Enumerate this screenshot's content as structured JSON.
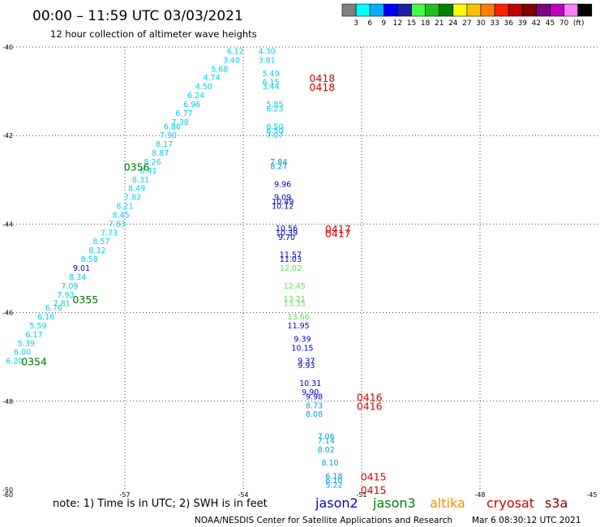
{
  "header": {
    "title": "00:00 – 11:59 UTC 03/03/2021",
    "subtitle": "12 hour collection of altimeter wave heights"
  },
  "scale": {
    "colors": [
      "#808080",
      "#00ffff",
      "#00b0ff",
      "#0000ff",
      "#2020a0",
      "#40ff40",
      "#20c020",
      "#008000",
      "#ffff00",
      "#ffc000",
      "#ff8000",
      "#ff2000",
      "#c00000",
      "#800000",
      "#800080",
      "#c000c0",
      "#ff80ff",
      "#000000"
    ],
    "labels": [
      "3",
      "6",
      "9",
      "12",
      "15",
      "18",
      "21",
      "24",
      "27",
      "30",
      "33",
      "36",
      "39",
      "42",
      "45",
      "70"
    ],
    "unit": "(ft)"
  },
  "footer": {
    "note": "note:  1) Time is in UTC; 2) SWH is in feet",
    "satellites": [
      {
        "name": "jason2",
        "color": "#0000cc"
      },
      {
        "name": "jason3",
        "color": "#008000"
      },
      {
        "name": "altika",
        "color": "#ff8c00"
      },
      {
        "name": "cryosat",
        "color": "#cc0000"
      },
      {
        "name": "s3a",
        "color": "#800000"
      }
    ],
    "credit": "NOAA/NESDIS Center for Satellite Applications and Research",
    "generated": "Mar  6 08:30:12 UTC 2021"
  },
  "chart_data": {
    "type": "scatter",
    "title": "00:00 – 11:59 UTC 03/03/2021",
    "subtitle": "12 hour collection of altimeter wave heights",
    "x_axis": {
      "range": [
        -60,
        -45
      ],
      "ticks": [
        "-57",
        "-54",
        "-51",
        "-48",
        "-45"
      ],
      "corner_label": "-60"
    },
    "y_axis": {
      "range": [
        -50,
        -40
      ],
      "ticks": [
        "-40",
        "-42",
        "-44",
        "-46",
        "-48",
        "-50"
      ]
    },
    "grid": "dotted",
    "tracks": [
      {
        "name": "track-west",
        "points": [
          {
            "lon": -54.2,
            "lat": -40.1,
            "swh": "6.12",
            "c": "#00d0f0"
          },
          {
            "lon": -54.3,
            "lat": -40.3,
            "swh": "3.40",
            "c": "#00d0f0"
          },
          {
            "lon": -54.6,
            "lat": -40.5,
            "swh": "5.68",
            "c": "#00d0f0"
          },
          {
            "lon": -54.8,
            "lat": -40.7,
            "swh": "4.74",
            "c": "#00d0f0"
          },
          {
            "lon": -55.0,
            "lat": -40.9,
            "swh": "4.50",
            "c": "#00d0f0"
          },
          {
            "lon": -55.2,
            "lat": -41.1,
            "swh": "6.24",
            "c": "#00d0f0"
          },
          {
            "lon": -55.3,
            "lat": -41.3,
            "swh": "6.96",
            "c": "#00d0f0"
          },
          {
            "lon": -55.5,
            "lat": -41.5,
            "swh": "6.77",
            "c": "#00d0f0"
          },
          {
            "lon": -55.6,
            "lat": -41.7,
            "swh": "7.38",
            "c": "#00d0f0"
          },
          {
            "lon": -55.8,
            "lat": -41.8,
            "swh": "6.86",
            "c": "#00d0f0"
          },
          {
            "lon": -55.9,
            "lat": -42.0,
            "swh": "7.90",
            "c": "#00d0f0"
          },
          {
            "lon": -56.0,
            "lat": -42.2,
            "swh": "8.17",
            "c": "#00d0f0"
          },
          {
            "lon": -56.1,
            "lat": -42.4,
            "swh": "8.87",
            "c": "#00d0f0"
          },
          {
            "lon": -56.3,
            "lat": -42.6,
            "swh": "8.26",
            "c": "#00d0f0"
          },
          {
            "lon": -56.4,
            "lat": -42.8,
            "swh": "8.41",
            "c": "#00d0f0"
          },
          {
            "lon": -56.6,
            "lat": -43.0,
            "swh": "8.31",
            "c": "#00d0f0"
          },
          {
            "lon": -56.7,
            "lat": -43.2,
            "swh": "8.49",
            "c": "#00d0f0"
          },
          {
            "lon": -56.8,
            "lat": -43.4,
            "swh": "7.82",
            "c": "#00d0f0"
          },
          {
            "lon": -57.0,
            "lat": -43.6,
            "swh": "8.21",
            "c": "#00d0f0"
          },
          {
            "lon": -57.1,
            "lat": -43.8,
            "swh": "8.45",
            "c": "#00d0f0"
          },
          {
            "lon": -57.2,
            "lat": -44.0,
            "swh": "7.83",
            "c": "#00d0f0"
          },
          {
            "lon": -57.4,
            "lat": -44.2,
            "swh": "7.73",
            "c": "#00d0f0"
          },
          {
            "lon": -57.6,
            "lat": -44.4,
            "swh": "8.57",
            "c": "#00d0f0"
          },
          {
            "lon": -57.7,
            "lat": -44.6,
            "swh": "8.32",
            "c": "#00d0f0"
          },
          {
            "lon": -57.9,
            "lat": -44.8,
            "swh": "8.58",
            "c": "#00d0f0"
          },
          {
            "lon": -58.1,
            "lat": -45.0,
            "swh": "9.01",
            "c": "#0000cc"
          },
          {
            "lon": -58.2,
            "lat": -45.2,
            "swh": "8.34",
            "c": "#00d0f0"
          },
          {
            "lon": -58.4,
            "lat": -45.4,
            "swh": "7.09",
            "c": "#00d0f0"
          },
          {
            "lon": -58.5,
            "lat": -45.6,
            "swh": "7.93",
            "c": "#00d0f0"
          },
          {
            "lon": -58.6,
            "lat": -45.8,
            "swh": "7.81",
            "c": "#00d0f0"
          },
          {
            "lon": -58.8,
            "lat": -45.9,
            "swh": "6.76",
            "c": "#00d0f0"
          },
          {
            "lon": -59.0,
            "lat": -46.1,
            "swh": "6.16",
            "c": "#00d0f0"
          },
          {
            "lon": -59.2,
            "lat": -46.3,
            "swh": "5.59",
            "c": "#00d0f0"
          },
          {
            "lon": -59.3,
            "lat": -46.5,
            "swh": "6.17",
            "c": "#00d0f0"
          },
          {
            "lon": -59.5,
            "lat": -46.7,
            "swh": "5.39",
            "c": "#00d0f0"
          },
          {
            "lon": -59.6,
            "lat": -46.9,
            "swh": "6.00",
            "c": "#00d0f0"
          },
          {
            "lon": -59.8,
            "lat": -47.1,
            "swh": "6.20",
            "c": "#00d0f0"
          }
        ]
      },
      {
        "name": "track-east",
        "points": [
          {
            "lon": -53.4,
            "lat": -40.1,
            "swh": "4.30",
            "c": "#00d0f0"
          },
          {
            "lon": -53.4,
            "lat": -40.3,
            "swh": "3.81",
            "c": "#00d0f0"
          },
          {
            "lon": -53.3,
            "lat": -40.6,
            "swh": "5.49",
            "c": "#00d0f0"
          },
          {
            "lon": -53.3,
            "lat": -40.8,
            "swh": "6.15",
            "c": "#00d0f0"
          },
          {
            "lon": -53.3,
            "lat": -40.9,
            "swh": "3.44",
            "c": "#00d0f0"
          },
          {
            "lon": -53.2,
            "lat": -41.3,
            "swh": "5.85",
            "c": "#00d0f0"
          },
          {
            "lon": -53.2,
            "lat": -41.4,
            "swh": "6.23",
            "c": "#00d0f0"
          },
          {
            "lon": -53.2,
            "lat": -41.8,
            "swh": "6.50",
            "c": "#00d0f0"
          },
          {
            "lon": -53.2,
            "lat": -41.9,
            "swh": "6.50",
            "c": "#00d0f0"
          },
          {
            "lon": -53.2,
            "lat": -42.0,
            "swh": "7.07",
            "c": "#00d0f0"
          },
          {
            "lon": -53.1,
            "lat": -42.6,
            "swh": "7.84",
            "c": "#0090e0"
          },
          {
            "lon": -53.1,
            "lat": -42.7,
            "swh": "8.27",
            "c": "#0090e0"
          },
          {
            "lon": -53.0,
            "lat": -43.1,
            "swh": "9.96",
            "c": "#0000cc"
          },
          {
            "lon": -53.0,
            "lat": -43.4,
            "swh": "9.09",
            "c": "#0000cc"
          },
          {
            "lon": -53.0,
            "lat": -43.5,
            "swh": "10.49",
            "c": "#0000cc"
          },
          {
            "lon": -53.0,
            "lat": -43.6,
            "swh": "10.12",
            "c": "#0000cc"
          },
          {
            "lon": -52.9,
            "lat": -44.1,
            "swh": "10.56",
            "c": "#0000cc"
          },
          {
            "lon": -52.9,
            "lat": -44.2,
            "swh": "10.39",
            "c": "#0000cc"
          },
          {
            "lon": -52.9,
            "lat": -44.3,
            "swh": "9.70",
            "c": "#0000cc"
          },
          {
            "lon": -52.8,
            "lat": -44.7,
            "swh": "11.57",
            "c": "#0000cc"
          },
          {
            "lon": -52.8,
            "lat": -44.8,
            "swh": "11.03",
            "c": "#0000cc"
          },
          {
            "lon": -52.8,
            "lat": -45.0,
            "swh": "12.02",
            "c": "#60e060"
          },
          {
            "lon": -52.7,
            "lat": -45.4,
            "swh": "12.45",
            "c": "#60e060"
          },
          {
            "lon": -52.7,
            "lat": -45.7,
            "swh": "13.21",
            "c": "#60e060"
          },
          {
            "lon": -52.7,
            "lat": -45.8,
            "swh": "13.35",
            "c": "#60e060"
          },
          {
            "lon": -52.6,
            "lat": -46.1,
            "swh": "13.66",
            "c": "#60e060"
          },
          {
            "lon": -52.6,
            "lat": -46.3,
            "swh": "11.95",
            "c": "#0000cc"
          },
          {
            "lon": -52.5,
            "lat": -46.6,
            "swh": "9.39",
            "c": "#0000cc"
          },
          {
            "lon": -52.5,
            "lat": -46.8,
            "swh": "10.15",
            "c": "#0000cc"
          },
          {
            "lon": -52.4,
            "lat": -47.1,
            "swh": "9.37",
            "c": "#0000cc"
          },
          {
            "lon": -52.4,
            "lat": -47.2,
            "swh": "9.93",
            "c": "#0000cc"
          },
          {
            "lon": -52.3,
            "lat": -47.6,
            "swh": "10.31",
            "c": "#0000cc"
          },
          {
            "lon": -52.3,
            "lat": -47.8,
            "swh": "9.90",
            "c": "#0000cc"
          },
          {
            "lon": -52.2,
            "lat": -47.9,
            "swh": "9.98",
            "c": "#0000cc"
          },
          {
            "lon": -52.2,
            "lat": -48.1,
            "swh": "8.73",
            "c": "#00a0e0"
          },
          {
            "lon": -52.2,
            "lat": -48.3,
            "swh": "8.08",
            "c": "#00a0e0"
          },
          {
            "lon": -51.9,
            "lat": -48.8,
            "swh": "7.06",
            "c": "#00a0e0"
          },
          {
            "lon": -51.9,
            "lat": -48.9,
            "swh": "7.14",
            "c": "#00a0e0"
          },
          {
            "lon": -51.9,
            "lat": -49.1,
            "swh": "8.02",
            "c": "#00a0e0"
          },
          {
            "lon": -51.8,
            "lat": -49.4,
            "swh": "8.10",
            "c": "#00a0e0"
          },
          {
            "lon": -51.7,
            "lat": -49.7,
            "swh": "6.18",
            "c": "#00a0e0"
          },
          {
            "lon": -51.7,
            "lat": -49.8,
            "swh": "6.10",
            "c": "#00a0e0"
          },
          {
            "lon": -51.7,
            "lat": -49.9,
            "swh": "5.22",
            "c": "#00a0e0"
          }
        ]
      }
    ],
    "time_labels": [
      {
        "lon": -52.0,
        "lat": -40.7,
        "text": "0418",
        "c": "#dd0000"
      },
      {
        "lon": -52.0,
        "lat": -40.9,
        "text": "0418",
        "c": "#dd0000"
      },
      {
        "lon": -56.7,
        "lat": -42.7,
        "text": "0356",
        "c": "#007000"
      },
      {
        "lon": -51.6,
        "lat": -44.1,
        "text": "0417",
        "c": "#dd0000"
      },
      {
        "lon": -51.6,
        "lat": -44.2,
        "text": "0417",
        "c": "#dd0000"
      },
      {
        "lon": -58.0,
        "lat": -45.7,
        "text": "0355",
        "c": "#007000"
      },
      {
        "lon": -59.3,
        "lat": -47.1,
        "text": "0354",
        "c": "#007000"
      },
      {
        "lon": -50.8,
        "lat": -47.9,
        "text": "0416",
        "c": "#dd0000"
      },
      {
        "lon": -50.8,
        "lat": -48.1,
        "text": "0416",
        "c": "#dd0000"
      },
      {
        "lon": -50.7,
        "lat": -49.7,
        "text": "0415",
        "c": "#dd0000"
      },
      {
        "lon": -50.7,
        "lat": -50.0,
        "text": "0415",
        "c": "#dd0000"
      }
    ]
  }
}
